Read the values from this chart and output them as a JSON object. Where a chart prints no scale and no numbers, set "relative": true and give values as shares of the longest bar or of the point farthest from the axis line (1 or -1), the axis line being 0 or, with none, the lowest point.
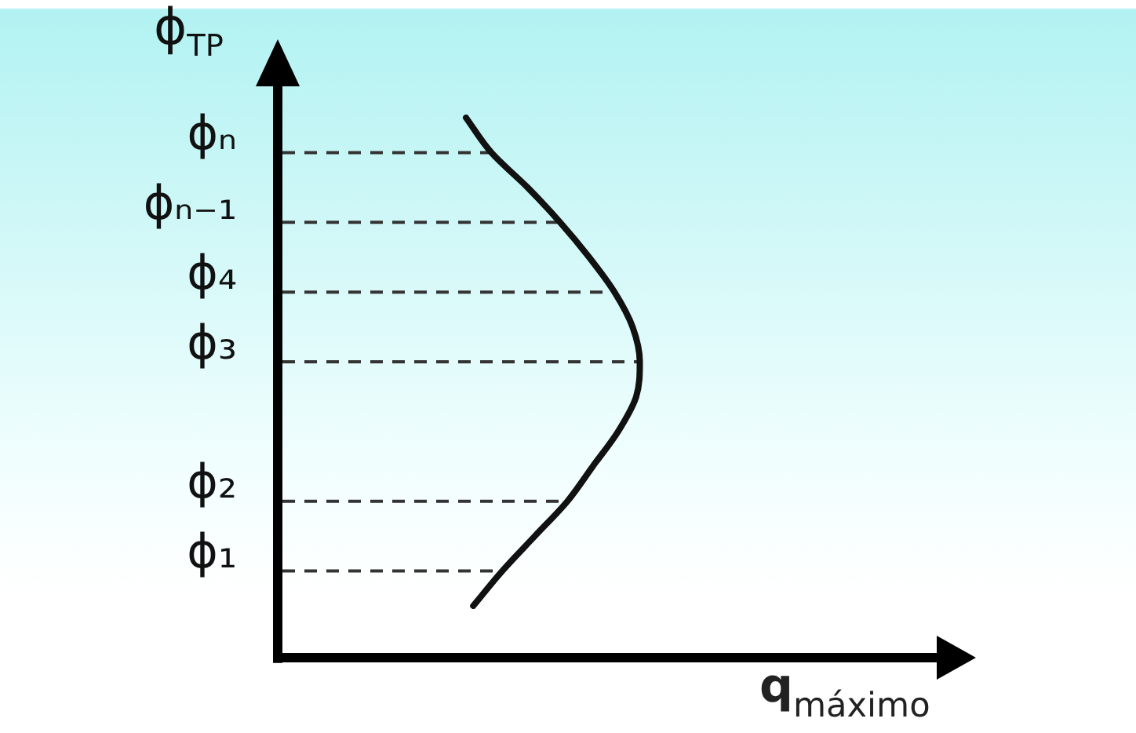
{
  "chart_data": {
    "type": "line",
    "orientation": "horizontal",
    "relative": true,
    "ylabel": "ϕ$_{TP}$",
    "xlabel": "q$_{máximo}$",
    "categories": [
      null,
      "ϕₙ",
      null,
      "ϕₙ₋₁",
      null,
      "ϕ₄",
      null,
      "ϕ₃",
      null,
      null,
      null,
      "ϕ₂",
      null,
      "ϕ₁",
      null
    ],
    "values": [
      0.52,
      0.59,
      0.69,
      0.78,
      0.86,
      0.93,
      0.98,
      1.0,
      0.99,
      0.94,
      0.87,
      0.8,
      0.71,
      0.62,
      0.54
    ],
    "color": "#111111",
    "marker": "none",
    "ref_lines": [
      {
        "axis": "y",
        "value": "ϕₙ",
        "line_style": "dashed",
        "color": "#333333"
      },
      {
        "axis": "y",
        "value": "ϕₙ₋₁",
        "line_style": "dashed",
        "color": "#333333"
      },
      {
        "axis": "y",
        "value": "ϕ₄",
        "line_style": "dashed",
        "color": "#333333"
      },
      {
        "axis": "y",
        "value": "ϕ₃",
        "line_style": "dashed",
        "color": "#333333"
      },
      {
        "axis": "y",
        "value": "ϕ₂",
        "line_style": "dashed",
        "color": "#333333"
      },
      {
        "axis": "y",
        "value": "ϕ₁",
        "line_style": "dashed",
        "color": "#333333"
      }
    ]
  }
}
